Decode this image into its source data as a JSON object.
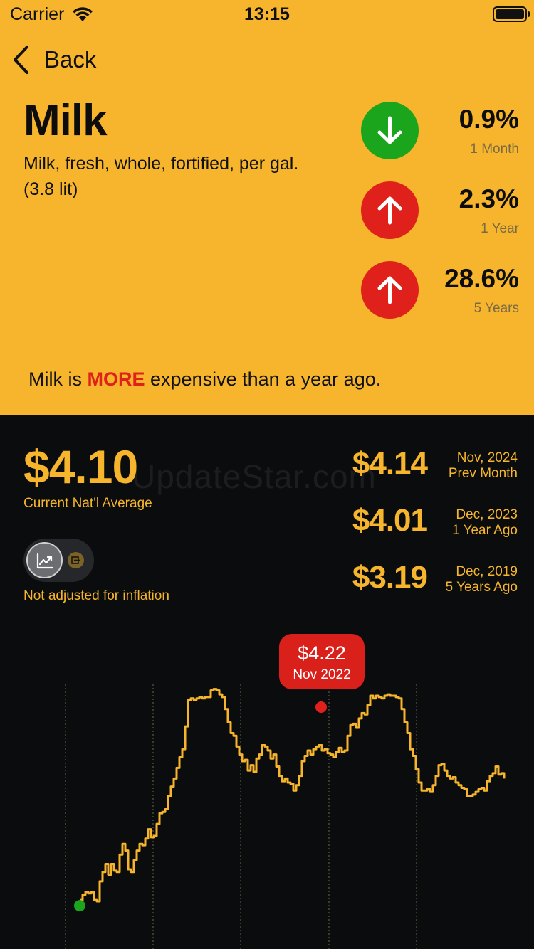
{
  "status": {
    "carrier": "Carrier",
    "time": "13:15"
  },
  "nav": {
    "back_label": "Back"
  },
  "item": {
    "title": "Milk",
    "subtitle": "Milk, fresh, whole, fortified, per gal. (3.8 lit)"
  },
  "changes": [
    {
      "pct": "0.9%",
      "period": "1 Month",
      "direction": "down",
      "color": "#1aa51d"
    },
    {
      "pct": "2.3%",
      "period": "1 Year",
      "direction": "up",
      "color": "#e0211b"
    },
    {
      "pct": "28.6%",
      "period": "5 Years",
      "direction": "up",
      "color": "#e0211b"
    }
  ],
  "verdict": {
    "prefix": "Milk is ",
    "emphasis": "MORE",
    "suffix": " expensive than a year ago."
  },
  "current": {
    "price": "$4.10",
    "label": "Current Nat'l Average"
  },
  "inflation_note": "Not adjusted for inflation",
  "history": [
    {
      "price": "$4.14",
      "date": "Nov, 2024",
      "ago": "Prev Month"
    },
    {
      "price": "$4.01",
      "date": "Dec, 2023",
      "ago": "1 Year Ago"
    },
    {
      "price": "$3.19",
      "date": "Dec, 2019",
      "ago": "5 Years Ago"
    }
  ],
  "watermark": "UpdateStar.com",
  "tooltip": {
    "price": "$4.22",
    "date": "Nov 2022"
  },
  "colors": {
    "accent": "#f6b52c",
    "background": "#0b0c0d",
    "up": "#e0211b",
    "down": "#1aa51d"
  },
  "chart_data": {
    "type": "line",
    "step": true,
    "x_start": "Dec 2019",
    "x_end": "Dec 2024",
    "values": [
      3.19,
      3.23,
      3.25,
      3.24,
      3.25,
      3.19,
      3.18,
      3.33,
      3.4,
      3.46,
      3.38,
      3.46,
      3.41,
      3.4,
      3.53,
      3.61,
      3.56,
      3.42,
      3.4,
      3.49,
      3.56,
      3.61,
      3.6,
      3.65,
      3.72,
      3.66,
      3.67,
      3.76,
      3.84,
      3.85,
      3.87,
      3.97,
      4.04,
      4.1,
      4.18,
      4.26,
      4.32,
      4.49,
      4.69,
      4.7,
      4.69,
      4.7,
      4.71,
      4.7,
      4.71,
      4.71,
      4.76,
      4.77,
      4.76,
      4.73,
      4.71,
      4.62,
      4.52,
      4.44,
      4.42,
      4.34,
      4.28,
      4.23,
      4.24,
      4.16,
      4.2,
      4.15,
      4.25,
      4.28,
      4.35,
      4.34,
      4.31,
      4.25,
      4.28,
      4.19,
      4.12,
      4.08,
      4.1,
      4.07,
      4.06,
      4.01,
      4.05,
      4.12,
      4.23,
      4.27,
      4.31,
      4.28,
      4.32,
      4.34,
      4.35,
      4.31,
      4.32,
      4.29,
      4.28,
      4.26,
      4.3,
      4.33,
      4.3,
      4.31,
      4.42,
      4.5,
      4.51,
      4.48,
      4.55,
      4.59,
      4.58,
      4.65,
      4.72,
      4.7,
      4.72,
      4.71,
      4.7,
      4.72,
      4.73,
      4.72,
      4.72,
      4.71,
      4.7,
      4.62,
      4.52,
      4.44,
      4.32,
      4.27,
      4.17,
      4.07,
      4.01,
      4.01,
      4.02,
      4.0,
      4.05,
      4.12,
      4.2,
      4.21,
      4.16,
      4.12,
      4.1,
      4.11,
      4.07,
      4.05,
      4.03,
      4.02,
      3.97,
      3.97,
      3.98,
      4.0,
      4.02,
      4.03,
      4.01,
      4.08,
      4.12,
      4.14,
      4.19,
      4.13,
      4.14,
      4.1
    ],
    "highlight": {
      "label": "Nov 2022",
      "value": 4.22
    },
    "ylim": [
      3.1,
      4.8
    ]
  }
}
